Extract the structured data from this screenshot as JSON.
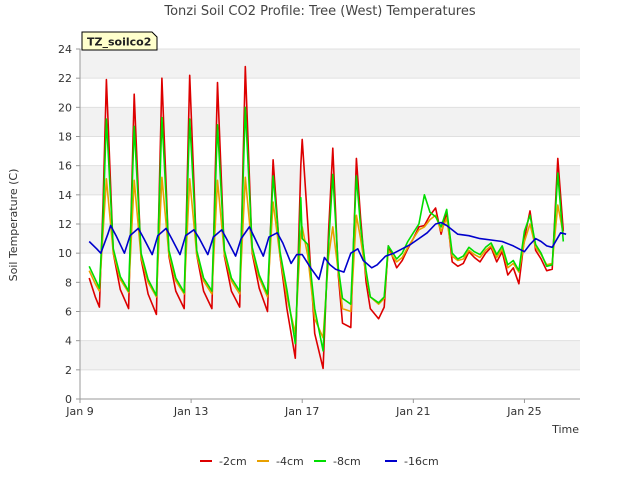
{
  "chart_data": {
    "type": "line",
    "title": "Tonzi Soil CO2 Profile: Tree (West) Temperatures",
    "xlabel": "Time",
    "ylabel": "Soil Temperature (C)",
    "site_label": "TZ_soilco2",
    "xlim": [
      9,
      27
    ],
    "ylim": [
      0,
      24
    ],
    "y_ticks": [
      0,
      2,
      4,
      6,
      8,
      10,
      12,
      14,
      16,
      18,
      20,
      22,
      24
    ],
    "x_ticks": [
      {
        "value": 9,
        "label": "Jan 9"
      },
      {
        "value": 13,
        "label": "Jan 13"
      },
      {
        "value": 17,
        "label": "Jan 17"
      },
      {
        "value": 21,
        "label": "Jan 21"
      },
      {
        "value": 25,
        "label": "Jan 25"
      }
    ],
    "grid": "horizontal bands",
    "legend_position": "bottom-center",
    "series": [
      {
        "name": "-2cm",
        "color": "#dd0000",
        "x": [
          9.33,
          9.55,
          9.7,
          9.83,
          9.95,
          10.2,
          10.45,
          10.75,
          10.95,
          11.2,
          11.45,
          11.75,
          11.95,
          12.2,
          12.45,
          12.75,
          12.95,
          13.2,
          13.45,
          13.75,
          13.95,
          14.2,
          14.45,
          14.75,
          14.95,
          15.2,
          15.45,
          15.75,
          15.95,
          16.2,
          16.45,
          16.75,
          16.95,
          17.0,
          17.2,
          17.45,
          17.75,
          17.95,
          18.1,
          18.3,
          18.45,
          18.75,
          18.95,
          19.1,
          19.3,
          19.45,
          19.75,
          19.95,
          20.1,
          20.4,
          20.6,
          20.8,
          21.0,
          21.2,
          21.4,
          21.6,
          21.8,
          22.0,
          22.2,
          22.4,
          22.6,
          22.8,
          23.0,
          23.2,
          23.4,
          23.6,
          23.8,
          24.0,
          24.2,
          24.4,
          24.6,
          24.8,
          25.0,
          25.2,
          25.4,
          25.6,
          25.8,
          26.0,
          26.2,
          26.4
        ],
        "y": [
          8.3,
          7.0,
          6.3,
          13.5,
          21.9,
          10.0,
          7.5,
          6.2,
          20.9,
          9.6,
          7.2,
          5.8,
          22.0,
          9.8,
          7.4,
          6.2,
          22.2,
          9.9,
          7.4,
          6.2,
          21.7,
          9.8,
          7.4,
          6.3,
          22.8,
          10.0,
          7.6,
          6.0,
          16.4,
          9.8,
          6.2,
          2.8,
          16.0,
          17.8,
          12.0,
          4.5,
          2.1,
          11.5,
          17.2,
          8.5,
          5.2,
          4.9,
          16.5,
          12.4,
          8.0,
          6.2,
          5.5,
          6.3,
          10.5,
          9.0,
          9.5,
          10.3,
          11.0,
          11.8,
          11.9,
          12.6,
          13.1,
          11.3,
          12.8,
          9.4,
          9.1,
          9.3,
          10.1,
          9.7,
          9.4,
          10.0,
          10.4,
          9.4,
          10.1,
          8.5,
          9.0,
          7.9,
          11.0,
          12.9,
          10.2,
          9.6,
          8.8,
          8.9,
          16.5,
          11.5
        ]
      },
      {
        "name": "-4cm",
        "color": "#e8a000",
        "x": [
          9.33,
          9.55,
          9.7,
          9.83,
          9.95,
          10.2,
          10.45,
          10.75,
          10.95,
          11.2,
          11.45,
          11.75,
          11.95,
          12.2,
          12.45,
          12.75,
          12.95,
          13.2,
          13.45,
          13.75,
          13.95,
          14.2,
          14.45,
          14.75,
          14.95,
          15.2,
          15.45,
          15.75,
          15.95,
          16.2,
          16.45,
          16.75,
          16.95,
          17.0,
          17.2,
          17.45,
          17.75,
          17.95,
          18.1,
          18.3,
          18.45,
          18.75,
          18.95,
          19.1,
          19.3,
          19.45,
          19.75,
          19.95,
          20.1,
          20.4,
          20.6,
          20.8,
          21.0,
          21.2,
          21.4,
          21.6,
          21.8,
          22.0,
          22.2,
          22.4,
          22.6,
          22.8,
          23.0,
          23.2,
          23.4,
          23.6,
          23.8,
          24.0,
          24.2,
          24.4,
          24.6,
          24.8,
          25.0,
          25.2,
          25.4,
          25.6,
          25.8,
          26.0,
          26.2,
          26.4
        ],
        "y": [
          8.8,
          7.9,
          7.4,
          11.5,
          15.1,
          10.0,
          8.2,
          7.3,
          15.0,
          9.7,
          8.0,
          7.0,
          15.2,
          9.9,
          8.1,
          7.2,
          15.1,
          9.9,
          8.1,
          7.2,
          15.0,
          9.9,
          8.1,
          7.2,
          15.2,
          10.1,
          8.3,
          7.0,
          13.5,
          9.8,
          7.0,
          4.5,
          11.3,
          11.8,
          9.8,
          5.5,
          4.2,
          9.8,
          11.8,
          8.7,
          6.2,
          6.0,
          12.6,
          11.0,
          8.5,
          7.0,
          6.5,
          6.9,
          10.2,
          9.4,
          9.7,
          10.4,
          11.0,
          11.6,
          11.8,
          12.3,
          12.6,
          11.5,
          12.4,
          9.8,
          9.5,
          9.6,
          10.2,
          9.9,
          9.7,
          10.2,
          10.5,
          9.7,
          10.3,
          9.0,
          9.3,
          8.7,
          10.8,
          12.0,
          10.4,
          9.9,
          9.2,
          9.3,
          13.3,
          11.3
        ]
      },
      {
        "name": "-8cm",
        "color": "#00dd00",
        "x": [
          9.33,
          9.55,
          9.7,
          9.83,
          9.95,
          10.2,
          10.45,
          10.75,
          10.95,
          11.2,
          11.45,
          11.75,
          11.95,
          12.2,
          12.45,
          12.75,
          12.95,
          13.2,
          13.45,
          13.75,
          13.95,
          14.2,
          14.45,
          14.75,
          14.95,
          15.2,
          15.45,
          15.75,
          15.95,
          16.2,
          16.45,
          16.75,
          16.95,
          17.0,
          17.2,
          17.45,
          17.75,
          17.95,
          18.1,
          18.3,
          18.45,
          18.75,
          18.95,
          19.1,
          19.3,
          19.45,
          19.75,
          19.95,
          20.1,
          20.4,
          20.6,
          20.8,
          21.0,
          21.2,
          21.4,
          21.6,
          21.8,
          22.0,
          22.2,
          22.4,
          22.6,
          22.8,
          23.0,
          23.2,
          23.4,
          23.6,
          23.8,
          24.0,
          24.2,
          24.4,
          24.6,
          24.8,
          25.0,
          25.2,
          25.4,
          25.6,
          25.8,
          26.0,
          26.2,
          26.4
        ],
        "y": [
          9.1,
          8.2,
          7.6,
          12.5,
          19.2,
          10.3,
          8.4,
          7.4,
          18.7,
          10.0,
          8.2,
          7.1,
          19.3,
          10.2,
          8.3,
          7.3,
          19.2,
          10.2,
          8.3,
          7.4,
          18.8,
          10.2,
          8.3,
          7.4,
          20.0,
          10.4,
          8.5,
          7.2,
          15.3,
          10.1,
          7.5,
          3.8,
          13.8,
          11.0,
          10.6,
          6.2,
          3.3,
          10.6,
          15.4,
          9.0,
          6.9,
          6.5,
          15.3,
          11.8,
          8.8,
          7.0,
          6.6,
          7.0,
          10.5,
          9.6,
          10.0,
          10.8,
          11.4,
          12.0,
          14.0,
          12.8,
          12.5,
          11.8,
          13.0,
          10.0,
          9.6,
          9.8,
          10.4,
          10.1,
          9.9,
          10.4,
          10.7,
          9.9,
          10.5,
          9.2,
          9.5,
          8.8,
          11.5,
          12.6,
          10.6,
          10.0,
          9.1,
          9.2,
          15.5,
          10.8
        ]
      },
      {
        "name": "-16cm",
        "color": "#0000cc",
        "x": [
          9.33,
          9.6,
          9.75,
          10.0,
          10.1,
          10.3,
          10.6,
          10.8,
          11.1,
          11.3,
          11.6,
          11.8,
          12.1,
          12.3,
          12.6,
          12.8,
          13.1,
          13.3,
          13.6,
          13.8,
          14.1,
          14.3,
          14.6,
          14.8,
          15.1,
          15.3,
          15.6,
          15.8,
          16.1,
          16.3,
          16.6,
          16.8,
          17.0,
          17.3,
          17.6,
          17.8,
          18.0,
          18.2,
          18.5,
          18.75,
          19.0,
          19.2,
          19.5,
          19.7,
          20.0,
          20.3,
          20.6,
          20.9,
          21.2,
          21.5,
          21.8,
          22.0,
          22.2,
          22.6,
          23.0,
          23.4,
          23.8,
          24.2,
          24.6,
          25.0,
          25.2,
          25.4,
          25.6,
          25.8,
          26.0,
          26.3,
          26.5
        ],
        "y": [
          10.8,
          10.3,
          10.0,
          11.3,
          11.9,
          11.2,
          10.0,
          11.2,
          11.7,
          11.0,
          9.9,
          11.2,
          11.7,
          11.0,
          9.9,
          11.2,
          11.6,
          11.0,
          9.9,
          11.1,
          11.6,
          10.9,
          9.8,
          11.0,
          11.8,
          11.0,
          9.8,
          11.1,
          11.4,
          10.7,
          9.3,
          9.9,
          9.9,
          9.0,
          8.2,
          9.7,
          9.2,
          8.9,
          8.7,
          10.0,
          10.3,
          9.5,
          9.0,
          9.2,
          9.8,
          10.0,
          10.3,
          10.6,
          11.0,
          11.4,
          12.0,
          12.1,
          11.9,
          11.3,
          11.2,
          11.0,
          10.9,
          10.8,
          10.5,
          10.1,
          10.6,
          11.0,
          10.8,
          10.5,
          10.4,
          11.4,
          11.3
        ]
      }
    ]
  }
}
